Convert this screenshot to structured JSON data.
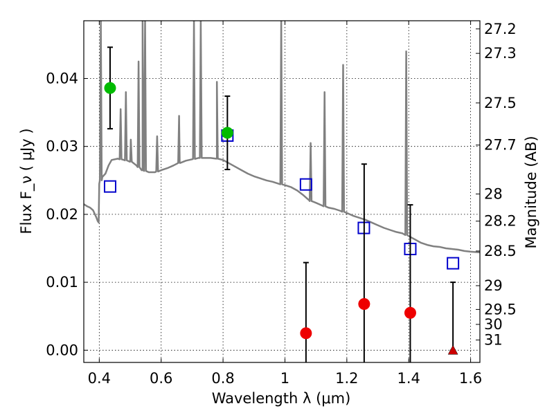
{
  "chart_data": {
    "type": "scatter",
    "xlabel": "Wavelength  λ (μm)",
    "ylabel": "Flux  F_ν ( μJy )",
    "y2label": "Magnitude (AB)",
    "xlim": [
      0.35,
      1.63
    ],
    "ylim": [
      -0.0018,
      0.0485
    ],
    "grid": true,
    "x_ticks": [
      0.4,
      0.6,
      0.8,
      1.0,
      1.2,
      1.4,
      1.6
    ],
    "x_tick_labels": [
      "0.4",
      "0.6",
      "0.8",
      "1",
      "1.2",
      "1.4",
      "1.6"
    ],
    "y_ticks": [
      0.0,
      0.01,
      0.02,
      0.03,
      0.04
    ],
    "y_tick_labels": [
      "0.00",
      "0.01",
      "0.02",
      "0.03",
      "0.04"
    ],
    "y2_ticks": [
      {
        "flux": 0.0473,
        "label": "27.2"
      },
      {
        "flux": 0.0437,
        "label": "27.3"
      },
      {
        "flux": 0.0364,
        "label": "27.5"
      },
      {
        "flux": 0.0302,
        "label": "27.7"
      },
      {
        "flux": 0.023,
        "label": "28"
      },
      {
        "flux": 0.019,
        "label": "28.2"
      },
      {
        "flux": 0.0146,
        "label": "28.5"
      },
      {
        "flux": 0.0095,
        "label": "29"
      },
      {
        "flux": 0.006,
        "label": "29.5"
      },
      {
        "flux": 0.0038,
        "label": "30"
      },
      {
        "flux": 0.0015,
        "label": "31"
      }
    ],
    "template_sed": {
      "color": "#808080",
      "x": [
        0.35,
        0.36,
        0.37,
        0.38,
        0.39,
        0.395,
        0.398,
        0.4,
        0.41,
        0.42,
        0.43,
        0.44,
        0.46,
        0.48,
        0.5,
        0.52,
        0.54,
        0.56,
        0.58,
        0.6,
        0.62,
        0.64,
        0.66,
        0.68,
        0.7,
        0.72,
        0.74,
        0.76,
        0.78,
        0.8,
        0.82,
        0.84,
        0.86,
        0.88,
        0.9,
        0.92,
        0.94,
        0.96,
        0.98,
        1.0,
        1.02,
        1.04,
        1.06,
        1.08,
        1.1,
        1.12,
        1.14,
        1.16,
        1.18,
        1.2,
        1.22,
        1.24,
        1.26,
        1.28,
        1.3,
        1.32,
        1.34,
        1.36,
        1.38,
        1.4,
        1.42,
        1.44,
        1.46,
        1.48,
        1.5,
        1.52,
        1.54,
        1.56,
        1.58,
        1.6,
        1.63
      ],
      "y": [
        0.0215,
        0.0212,
        0.021,
        0.0206,
        0.0196,
        0.019,
        0.0188,
        0.0245,
        0.0255,
        0.026,
        0.0272,
        0.028,
        0.0282,
        0.028,
        0.0278,
        0.0272,
        0.0265,
        0.0262,
        0.0262,
        0.0265,
        0.0268,
        0.0272,
        0.0276,
        0.0279,
        0.0281,
        0.0283,
        0.0283,
        0.0283,
        0.0282,
        0.028,
        0.0275,
        0.027,
        0.0265,
        0.026,
        0.0256,
        0.0253,
        0.025,
        0.0248,
        0.0245,
        0.0243,
        0.024,
        0.0235,
        0.0228,
        0.022,
        0.0217,
        0.0213,
        0.021,
        0.0208,
        0.0205,
        0.0202,
        0.0198,
        0.0195,
        0.0192,
        0.0188,
        0.0184,
        0.018,
        0.0177,
        0.0174,
        0.0172,
        0.0168,
        0.0163,
        0.0158,
        0.0155,
        0.0153,
        0.0152,
        0.015,
        0.0149,
        0.0148,
        0.0146,
        0.0145,
        0.0144
      ]
    },
    "emission_lines": [
      {
        "x": 0.405,
        "peak": 0.0485
      },
      {
        "x": 0.469,
        "peak": 0.0355
      },
      {
        "x": 0.486,
        "peak": 0.038
      },
      {
        "x": 0.502,
        "peak": 0.031
      },
      {
        "x": 0.527,
        "peak": 0.0425
      },
      {
        "x": 0.54,
        "peak": 0.0485
      },
      {
        "x": 0.548,
        "peak": 0.0485
      },
      {
        "x": 0.587,
        "peak": 0.0315
      },
      {
        "x": 0.658,
        "peak": 0.0345
      },
      {
        "x": 0.706,
        "peak": 0.0485
      },
      {
        "x": 0.728,
        "peak": 0.0485
      },
      {
        "x": 0.78,
        "peak": 0.0395
      },
      {
        "x": 0.988,
        "peak": 0.0485
      },
      {
        "x": 1.083,
        "peak": 0.0305
      },
      {
        "x": 1.128,
        "peak": 0.038
      },
      {
        "x": 1.188,
        "peak": 0.042
      },
      {
        "x": 1.392,
        "peak": 0.044
      }
    ],
    "series": [
      {
        "marker": "open-square",
        "color": "#0000cc",
        "x": [
          0.435,
          0.814,
          1.068,
          1.255,
          1.405,
          1.543
        ],
        "y": [
          0.0241,
          0.0316,
          0.0244,
          0.018,
          0.0149,
          0.0128
        ]
      },
      {
        "marker": "filled-circle",
        "color": "#00bb00",
        "x": [
          0.435,
          0.814
        ],
        "y": [
          0.0386,
          0.032
        ],
        "err_low": [
          0.0326,
          0.0266
        ],
        "err_high": [
          0.0446,
          0.0374
        ]
      },
      {
        "marker": "filled-circle",
        "color": "#ee0000",
        "x": [
          1.068,
          1.256,
          1.405
        ],
        "y": [
          0.0025,
          0.0068,
          0.0055
        ],
        "err_low": [
          -0.0018,
          -0.0018,
          -0.0018
        ],
        "err_high": [
          0.0129,
          0.0274,
          0.0214
        ]
      },
      {
        "marker": "filled-triangle",
        "color": "#cc0000",
        "x": [
          1.543
        ],
        "y": [
          0.0
        ],
        "err_low": [
          0.0
        ],
        "err_high": [
          0.01
        ]
      }
    ]
  }
}
